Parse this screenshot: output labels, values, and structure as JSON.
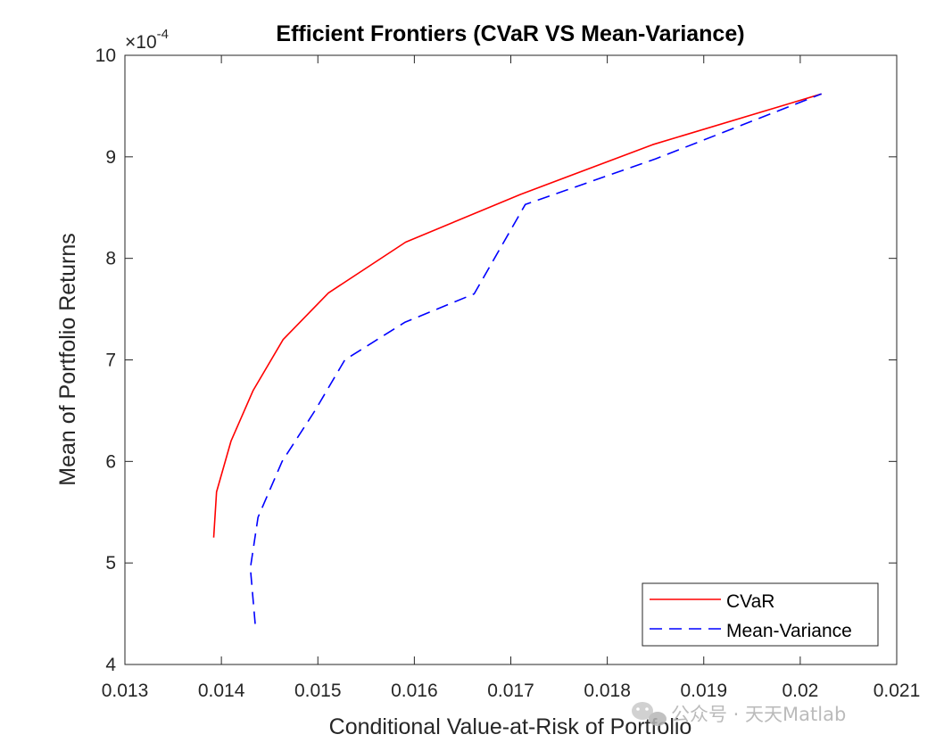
{
  "chart_data": {
    "type": "line",
    "title": "Efficient Frontiers (CVaR VS Mean-Variance)",
    "xlabel": "Conditional Value-at-Risk of Portfolio",
    "ylabel": "Mean of Portfolio Returns",
    "y_exponent_label": "×10",
    "y_exponent_power": "-4",
    "xlim": [
      0.013,
      0.021
    ],
    "ylim": [
      4,
      10
    ],
    "x_ticks": [
      0.013,
      0.014,
      0.015,
      0.016,
      0.017,
      0.018,
      0.019,
      0.02,
      0.021
    ],
    "x_tick_labels": [
      "0.013",
      "0.014",
      "0.015",
      "0.016",
      "0.017",
      "0.018",
      "0.019",
      "0.02",
      "0.021"
    ],
    "y_ticks": [
      4,
      5,
      6,
      7,
      8,
      9,
      10
    ],
    "y_tick_labels": [
      "4",
      "5",
      "6",
      "7",
      "8",
      "9",
      "10"
    ],
    "grid": false,
    "legend_position": "bottom-right",
    "series": [
      {
        "name": "CVaR",
        "color": "#ff0000",
        "style": "solid",
        "x": [
          0.01392,
          0.01395,
          0.0141,
          0.01433,
          0.01464,
          0.01511,
          0.01591,
          0.0171,
          0.01847,
          0.02022
        ],
        "y": [
          5.25,
          5.7,
          6.2,
          6.7,
          7.2,
          7.66,
          8.16,
          8.63,
          9.12,
          9.62
        ]
      },
      {
        "name": "Mean-Variance",
        "color": "#0000ff",
        "style": "dashed",
        "x": [
          0.01435,
          0.0143,
          0.01438,
          0.01463,
          0.01497,
          0.01528,
          0.0159,
          0.01662,
          0.01715,
          0.0185,
          0.02022
        ],
        "y": [
          4.4,
          4.95,
          5.45,
          6.0,
          6.5,
          7.0,
          7.37,
          7.65,
          8.53,
          8.98,
          9.62
        ]
      }
    ]
  },
  "watermark": {
    "icon": "wechat-icon",
    "text": "公众号 · 天天Matlab"
  }
}
